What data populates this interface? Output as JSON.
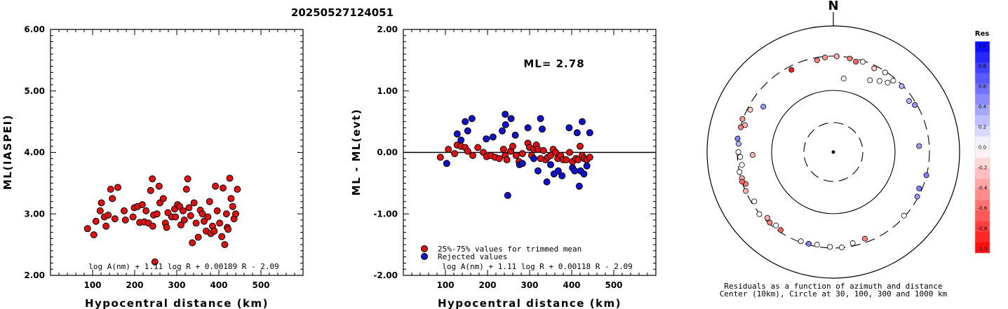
{
  "header": {
    "event_id": "20250527124051"
  },
  "chart_data": [
    {
      "type": "scatter",
      "xlabel": "Hypocentral distance (km)",
      "ylabel": "ML(IASPEI)",
      "xlim": [
        0,
        600
      ],
      "ylim": [
        2.0,
        6.0
      ],
      "x_ticks": [
        "100",
        "200",
        "300",
        "400",
        "500"
      ],
      "y_ticks": [
        "6.00",
        "5.00",
        "4.00",
        "3.00",
        "2.00"
      ],
      "formula": "log A(nm) + 1.11 log R + 0.00189 R - 2.09",
      "marker_color": "#dd1111",
      "points": [
        [
          88,
          2.76
        ],
        [
          103,
          2.66
        ],
        [
          108,
          2.88
        ],
        [
          118,
          3.05
        ],
        [
          121,
          3.18
        ],
        [
          128,
          2.95
        ],
        [
          132,
          2.8
        ],
        [
          137,
          2.98
        ],
        [
          143,
          3.4
        ],
        [
          147,
          3.25
        ],
        [
          153,
          2.92
        ],
        [
          160,
          3.43
        ],
        [
          175,
          3.05
        ],
        [
          178,
          2.9
        ],
        [
          196,
          2.95
        ],
        [
          199,
          3.1
        ],
        [
          207,
          3.12
        ],
        [
          212,
          2.86
        ],
        [
          218,
          3.15
        ],
        [
          223,
          2.87
        ],
        [
          227,
          3.05
        ],
        [
          233,
          2.85
        ],
        [
          238,
          3.38
        ],
        [
          242,
          3.57
        ],
        [
          243,
          2.8
        ],
        [
          245,
          2.98
        ],
        [
          248,
          2.22
        ],
        [
          253,
          3.0
        ],
        [
          258,
          3.45
        ],
        [
          260,
          3.18
        ],
        [
          268,
          3.25
        ],
        [
          273,
          2.85
        ],
        [
          276,
          2.78
        ],
        [
          279,
          3.02
        ],
        [
          288,
          2.95
        ],
        [
          295,
          3.08
        ],
        [
          297,
          2.95
        ],
        [
          302,
          3.15
        ],
        [
          307,
          3.12
        ],
        [
          310,
          2.82
        ],
        [
          315,
          3.05
        ],
        [
          318,
          2.9
        ],
        [
          323,
          3.4
        ],
        [
          326,
          3.57
        ],
        [
          329,
          3.1
        ],
        [
          333,
          2.97
        ],
        [
          337,
          2.53
        ],
        [
          341,
          3.18
        ],
        [
          346,
          2.85
        ],
        [
          351,
          2.62
        ],
        [
          356,
          3.06
        ],
        [
          361,
          3.0
        ],
        [
          365,
          2.88
        ],
        [
          370,
          2.72
        ],
        [
          374,
          2.95
        ],
        [
          378,
          3.2
        ],
        [
          381,
          2.68
        ],
        [
          385,
          2.8
        ],
        [
          389,
          2.72
        ],
        [
          392,
          3.45
        ],
        [
          396,
          3.05
        ],
        [
          402,
          2.85
        ],
        [
          407,
          2.63
        ],
        [
          410,
          3.42
        ],
        [
          414,
          2.5
        ],
        [
          418,
          3.0
        ],
        [
          420,
          2.78
        ],
        [
          422,
          2.75
        ],
        [
          426,
          3.58
        ],
        [
          429,
          3.25
        ],
        [
          433,
          3.12
        ],
        [
          436,
          2.92
        ],
        [
          440,
          3.0
        ],
        [
          444,
          3.4
        ]
      ]
    },
    {
      "type": "scatter",
      "xlabel": "Hypocentral distance (km)",
      "ylabel": "ML - ML(evt)",
      "xlim": [
        0,
        600
      ],
      "ylim": [
        -2.0,
        2.0
      ],
      "x_ticks": [
        "100",
        "200",
        "300",
        "400",
        "500"
      ],
      "y_ticks": [
        "2.00",
        "1.00",
        "0.00",
        "-1.00",
        "-2.00"
      ],
      "annotation": "ML= 2.78",
      "formula": "log A(nm) + 1.11 log R + 0.00118 R - 2.09",
      "legend": [
        {
          "label": "25%-75% values for trimmed mean",
          "color": "#dd1111"
        },
        {
          "label": "Rejected values",
          "color": "#1111cc"
        }
      ],
      "legend_position": "bottom-left",
      "series": [
        {
          "name": "25%-75% values for trimmed mean",
          "color": "#dd1111",
          "points": [
            [
              88,
              -0.08
            ],
            [
              107,
              0.05
            ],
            [
              122,
              -0.02
            ],
            [
              128,
              0.12
            ],
            [
              137,
              0.1
            ],
            [
              147,
              0.08
            ],
            [
              153,
              0.02
            ],
            [
              165,
              -0.05
            ],
            [
              177,
              0.08
            ],
            [
              190,
              0.0
            ],
            [
              198,
              -0.07
            ],
            [
              208,
              -0.05
            ],
            [
              218,
              -0.08
            ],
            [
              228,
              -0.1
            ],
            [
              238,
              0.05
            ],
            [
              242,
              -0.05
            ],
            [
              246,
              -0.12
            ],
            [
              255,
              0.02
            ],
            [
              260,
              0.1
            ],
            [
              268,
              -0.05
            ],
            [
              275,
              -0.15
            ],
            [
              283,
              -0.02
            ],
            [
              296,
              0.15
            ],
            [
              300,
              0.08
            ],
            [
              305,
              -0.05
            ],
            [
              310,
              0.05
            ],
            [
              316,
              0.12
            ],
            [
              320,
              0.05
            ],
            [
              326,
              -0.1
            ],
            [
              333,
              0.03
            ],
            [
              338,
              -0.12
            ],
            [
              343,
              -0.08
            ],
            [
              350,
              -0.05
            ],
            [
              356,
              0.05
            ],
            [
              362,
              0.0
            ],
            [
              367,
              -0.1
            ],
            [
              374,
              -0.05
            ],
            [
              380,
              -0.12
            ],
            [
              387,
              -0.12
            ],
            [
              395,
              0.0
            ],
            [
              402,
              -0.15
            ],
            [
              410,
              -0.1
            ],
            [
              415,
              -0.12
            ],
            [
              420,
              0.1
            ],
            [
              425,
              -0.05
            ],
            [
              430,
              -0.1
            ],
            [
              436,
              -0.12
            ],
            [
              443,
              -0.08
            ]
          ]
        },
        {
          "name": "Rejected values",
          "color": "#1111cc",
          "points": [
            [
              103,
              -0.18
            ],
            [
              128,
              0.3
            ],
            [
              137,
              0.2
            ],
            [
              147,
              0.5
            ],
            [
              153,
              0.35
            ],
            [
              163,
              0.55
            ],
            [
              197,
              0.22
            ],
            [
              213,
              0.25
            ],
            [
              235,
              0.35
            ],
            [
              242,
              0.62
            ],
            [
              243,
              0.45
            ],
            [
              248,
              -0.7
            ],
            [
              256,
              0.55
            ],
            [
              266,
              0.28
            ],
            [
              276,
              -0.2
            ],
            [
              283,
              -0.18
            ],
            [
              296,
              0.4
            ],
            [
              310,
              -0.1
            ],
            [
              320,
              -0.3
            ],
            [
              326,
              0.55
            ],
            [
              330,
              0.38
            ],
            [
              341,
              -0.48
            ],
            [
              350,
              -0.2
            ],
            [
              358,
              -0.35
            ],
            [
              368,
              -0.3
            ],
            [
              377,
              -0.38
            ],
            [
              394,
              0.4
            ],
            [
              402,
              -0.25
            ],
            [
              407,
              -0.3
            ],
            [
              413,
              0.32
            ],
            [
              418,
              -0.55
            ],
            [
              421,
              -0.3
            ],
            [
              425,
              0.5
            ],
            [
              429,
              -0.35
            ],
            [
              436,
              -0.22
            ],
            [
              443,
              0.32
            ]
          ]
        }
      ]
    },
    {
      "type": "scatter",
      "subtype": "polar residual plot",
      "north_label": "N",
      "caption": [
        "Residuals as a function of azimuth and distance",
        "Center (10km), Circle at 30, 100, 300 and 1000 km"
      ],
      "colorbar": {
        "title": "Res",
        "tick_labels": [
          "1.0",
          "0.8",
          "0.6",
          "0.4",
          "0.2",
          "0.0",
          "-0.2",
          "-0.4",
          "-0.6",
          "-0.8",
          "-1.0"
        ],
        "max_color": "#0000ff",
        "mid_color": "#ffffff",
        "min_color": "#ff0000"
      },
      "points_az_dist_res": [
        [
          350,
          300,
          -0.5
        ],
        [
          355,
          320,
          -0.4
        ],
        [
          2,
          330,
          -0.3
        ],
        [
          10,
          320,
          -0.5
        ],
        [
          14,
          300,
          -0.6
        ],
        [
          18,
          320,
          0.0
        ],
        [
          26,
          300,
          -0.2
        ],
        [
          33,
          320,
          0.0
        ],
        [
          40,
          300,
          0.0
        ],
        [
          46,
          320,
          0.3
        ],
        [
          56,
          280,
          0.3
        ],
        [
          60,
          310,
          0.4
        ],
        [
          8,
          150,
          0.0
        ],
        [
          27,
          190,
          0.0
        ],
        [
          33,
          220,
          0.0
        ],
        [
          38,
          250,
          0.0
        ],
        [
          333,
          290,
          -0.9
        ],
        [
          303,
          210,
          0.4
        ],
        [
          297,
          300,
          -0.2
        ],
        [
          287,
          290,
          -0.3
        ],
        [
          285,
          330,
          -0.5
        ],
        [
          290,
          340,
          -0.4
        ],
        [
          278,
          340,
          0.5
        ],
        [
          275,
          320,
          0.3
        ],
        [
          270,
          320,
          0.0
        ],
        [
          267,
          300,
          0.0
        ],
        [
          258,
          330,
          0.0
        ],
        [
          262,
          290,
          0.0
        ],
        [
          254,
          320,
          -0.3
        ],
        [
          250,
          300,
          -0.5
        ],
        [
          252,
          330,
          -0.6
        ],
        [
          246,
          330,
          -0.3
        ],
        [
          238,
          300,
          0.0
        ],
        [
          230,
          340,
          0.0
        ],
        [
          225,
          300,
          -0.3
        ],
        [
          222,
          320,
          -0.5
        ],
        [
          218,
          300,
          0.0
        ],
        [
          214,
          310,
          -0.6
        ],
        [
          200,
          320,
          0.0
        ],
        [
          195,
          320,
          0.5
        ],
        [
          190,
          310,
          0.0
        ],
        [
          182,
          320,
          0.0
        ],
        [
          175,
          330,
          0.0
        ],
        [
          168,
          300,
          0.0
        ],
        [
          160,
          290,
          -0.5
        ],
        [
          132,
          320,
          0.0
        ],
        [
          118,
          320,
          0.4
        ],
        [
          113,
          300,
          0.5
        ],
        [
          104,
          330,
          0.5
        ],
        [
          86,
          230,
          0.4
        ],
        [
          268,
          190,
          -0.3
        ]
      ]
    }
  ]
}
